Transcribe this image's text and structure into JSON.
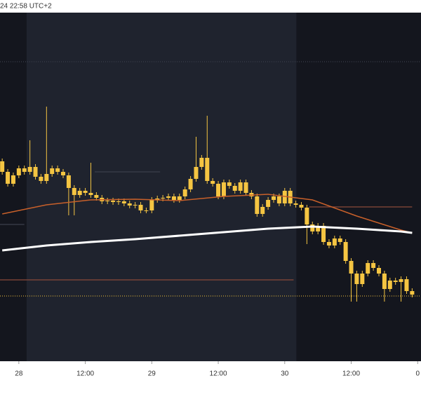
{
  "chart_data": {
    "type": "candlestick",
    "header": "24 22:58 UTC+2",
    "candle_color": "#f5c542",
    "x": [
      21,
      22,
      23,
      24,
      25,
      26,
      27,
      28,
      29,
      30,
      31,
      32,
      33,
      34,
      35,
      36,
      37,
      38,
      39,
      40,
      41,
      42,
      43,
      44,
      45,
      46,
      47,
      48,
      49,
      50,
      51,
      52,
      53,
      54,
      55,
      56,
      57,
      58,
      59,
      60,
      61,
      62,
      63,
      64,
      65,
      66,
      67,
      68,
      69,
      70,
      71,
      72,
      73,
      74,
      75,
      76,
      77,
      78,
      79,
      80,
      81,
      82,
      83,
      84,
      85,
      86,
      87,
      88,
      89,
      90,
      91,
      92,
      93,
      94,
      95
    ],
    "open": [
      285,
      270,
      253,
      265,
      275,
      270,
      277,
      263,
      257,
      267,
      275,
      270,
      265,
      247,
      237,
      243,
      240,
      237,
      233,
      228,
      229,
      227,
      228,
      225,
      222,
      223,
      215,
      215,
      230,
      232,
      233,
      235,
      230,
      235,
      245,
      260,
      277,
      290,
      257,
      253,
      235,
      255,
      250,
      243,
      255,
      240,
      235,
      210,
      220,
      230,
      235,
      225,
      243,
      225,
      223,
      219,
      195,
      185,
      193,
      170,
      165,
      175,
      170,
      143,
      125,
      110,
      125,
      140,
      133,
      125,
      103,
      115,
      113,
      117,
      100
    ],
    "high": [
      289,
      274,
      269,
      279,
      279,
      315,
      281,
      267,
      363,
      279,
      279,
      274,
      269,
      251,
      247,
      247,
      283,
      241,
      237,
      233,
      233,
      232,
      232,
      229,
      227,
      227,
      219,
      234,
      236,
      237,
      239,
      239,
      239,
      249,
      264,
      320,
      294,
      350,
      261,
      257,
      259,
      259,
      254,
      259,
      259,
      244,
      239,
      224,
      234,
      239,
      239,
      247,
      247,
      229,
      227,
      223,
      199,
      197,
      197,
      174,
      179,
      179,
      174,
      147,
      129,
      129,
      144,
      144,
      137,
      129,
      119,
      119,
      121,
      121,
      104
    ],
    "low": [
      266,
      249,
      249,
      261,
      266,
      266,
      259,
      253,
      253,
      263,
      266,
      261,
      208,
      208,
      233,
      236,
      233,
      229,
      224,
      224,
      223,
      223,
      221,
      218,
      218,
      211,
      211,
      211,
      226,
      228,
      229,
      226,
      226,
      231,
      241,
      256,
      273,
      253,
      249,
      231,
      231,
      246,
      239,
      239,
      236,
      231,
      206,
      206,
      216,
      226,
      221,
      221,
      221,
      219,
      215,
      167,
      181,
      181,
      166,
      161,
      161,
      166,
      139,
      85,
      85,
      106,
      121,
      129,
      121,
      85,
      99,
      109,
      85,
      96,
      91
    ],
    "close": [
      270,
      253,
      265,
      275,
      270,
      277,
      263,
      257,
      267,
      275,
      270,
      265,
      247,
      237,
      243,
      240,
      237,
      233,
      228,
      229,
      227,
      228,
      225,
      222,
      223,
      215,
      215,
      230,
      232,
      233,
      235,
      230,
      235,
      245,
      260,
      277,
      290,
      257,
      253,
      235,
      255,
      250,
      243,
      255,
      240,
      235,
      210,
      220,
      230,
      235,
      225,
      243,
      225,
      223,
      219,
      195,
      185,
      193,
      170,
      165,
      175,
      170,
      143,
      125,
      110,
      125,
      140,
      133,
      125,
      103,
      115,
      113,
      117,
      100,
      95
    ],
    "overlays": [
      {
        "color": "#c8602a",
        "x": [
          21,
          29,
          37,
          45,
          53,
          61,
          69,
          77,
          85,
          93,
          95
        ],
        "values": [
          210,
          223,
          230,
          231,
          229,
          235,
          238,
          230,
          207,
          187,
          183
        ]
      },
      {
        "color": "#ffffff",
        "x": [
          21,
          29,
          37,
          45,
          53,
          61,
          69,
          77,
          85,
          93,
          95
        ],
        "values": [
          158,
          165,
          170,
          174,
          179,
          184,
          189,
          192,
          189,
          185,
          183
        ]
      }
    ],
    "levels": [
      {
        "value": 116,
        "from": 20.6,
        "to": 73.6,
        "color": "#8a4a3a",
        "dash": false
      },
      {
        "value": 220,
        "from": 76.4,
        "to": 95,
        "color": "#8a4a3a",
        "dash": false
      },
      {
        "value": 270,
        "from": 37.7,
        "to": 49.5,
        "color": "#3a3f4c",
        "dash": false
      },
      {
        "value": 195,
        "from": 20.6,
        "to": 25,
        "color": "#3a3f4c",
        "dash": false
      },
      {
        "value": 93,
        "from": 20.6,
        "to": 96.6,
        "color": "#c9a43a",
        "dash": true
      },
      {
        "value": 427,
        "from": 20.6,
        "to": 96.6,
        "color": "#3a3f4c",
        "dash": true
      }
    ],
    "session": {
      "from": 25.4,
      "to": 74.1,
      "color": "#1f232e"
    },
    "background": "#14161e",
    "xlim": [
      20.6,
      96.6
    ],
    "ylim": [
      0,
      497
    ],
    "xticks": [
      {
        "value": 24,
        "label": "28"
      },
      {
        "value": 36,
        "label": "12:00"
      },
      {
        "value": 48,
        "label": "29"
      },
      {
        "value": 60,
        "label": "12:00"
      },
      {
        "value": 72,
        "label": "30"
      },
      {
        "value": 84,
        "label": "12:00"
      },
      {
        "value": 96,
        "label": "0"
      }
    ]
  }
}
